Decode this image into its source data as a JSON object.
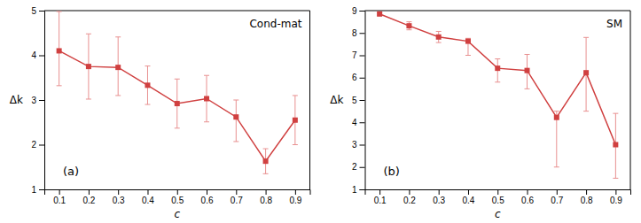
{
  "chart_data": [
    {
      "type": "line",
      "title": "Cond-mat",
      "annotations": [
        "(a)"
      ],
      "xlabel": "c",
      "ylabel": "Δk",
      "x": [
        0.1,
        0.2,
        0.3,
        0.4,
        0.5,
        0.6,
        0.7,
        0.8,
        0.9
      ],
      "series": [
        {
          "color": "#d04040",
          "error_color": "#e89090",
          "marker": "square",
          "values": [
            4.1,
            3.75,
            3.73,
            3.33,
            2.92,
            3.03,
            2.62,
            1.63,
            2.55
          ],
          "yerr_lo": [
            0.78,
            0.73,
            0.63,
            0.43,
            0.55,
            0.52,
            0.55,
            0.28,
            0.55
          ],
          "yerr_hi": [
            0.88,
            0.73,
            0.68,
            0.43,
            0.55,
            0.52,
            0.38,
            0.28,
            0.55
          ]
        }
      ],
      "xlim": [
        0.05,
        0.95
      ],
      "xticks": [
        0.1,
        0.2,
        0.3,
        0.4,
        0.5,
        0.6,
        0.7,
        0.8,
        0.9
      ],
      "ylim": [
        1,
        5
      ],
      "yticks": [
        1,
        2,
        3,
        4,
        5
      ]
    },
    {
      "type": "line",
      "title": "SM",
      "annotations": [
        "(b)"
      ],
      "xlabel": "c",
      "ylabel": "Δk",
      "x": [
        0.1,
        0.2,
        0.3,
        0.4,
        0.5,
        0.6,
        0.7,
        0.8,
        0.9
      ],
      "series": [
        {
          "color": "#d04040",
          "error_color": "#e89090",
          "marker": "square",
          "values": [
            8.85,
            8.32,
            7.82,
            7.63,
            6.42,
            6.32,
            4.22,
            6.22,
            3.0
          ],
          "yerr_lo": [
            0.05,
            0.18,
            0.25,
            0.63,
            0.62,
            0.82,
            2.22,
            1.72,
            1.5
          ],
          "yerr_hi": [
            0.05,
            0.18,
            0.25,
            0.13,
            0.42,
            0.72,
            0.28,
            1.58,
            1.4
          ]
        }
      ],
      "xlim": [
        0.05,
        0.95
      ],
      "xticks": [
        0.1,
        0.2,
        0.3,
        0.4,
        0.5,
        0.6,
        0.7,
        0.8,
        0.9
      ],
      "ylim": [
        1,
        9
      ],
      "yticks": [
        1,
        2,
        3,
        4,
        5,
        6,
        7,
        8,
        9
      ]
    }
  ]
}
